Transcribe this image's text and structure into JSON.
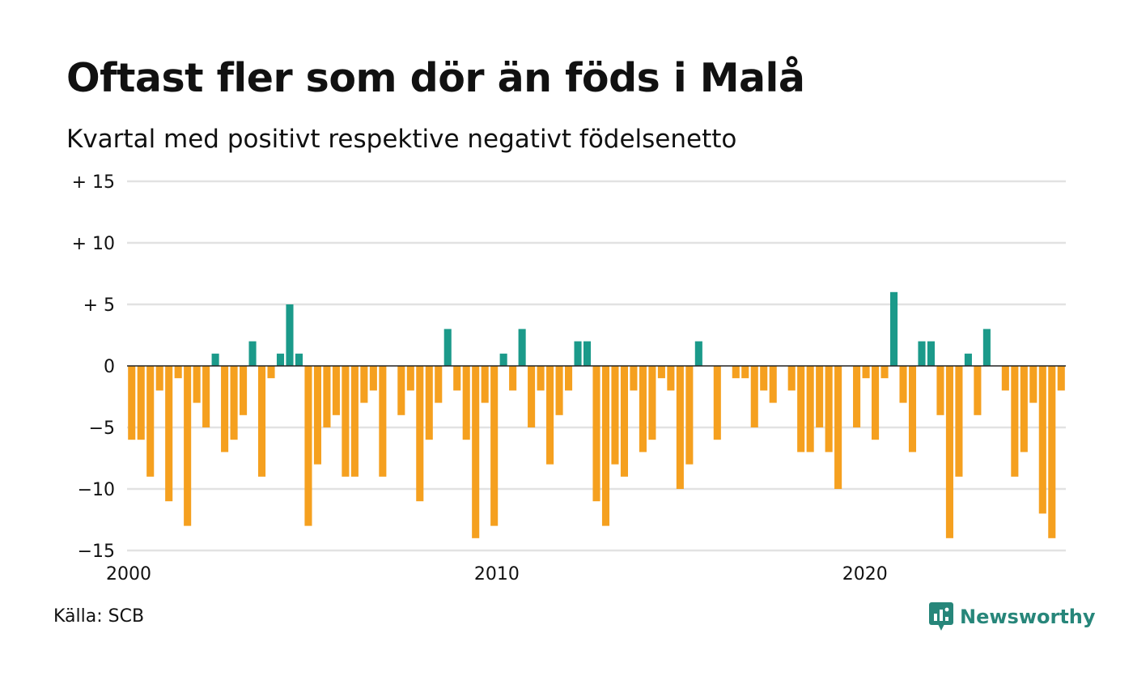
{
  "title": "Oftast fler som dör än föds i Malå",
  "subtitle": "Kvartal med positivt respektive negativt födelsenetto",
  "source": "Källa: SCB",
  "brand": {
    "name": "Newsworthy",
    "icon": "chart-speech-bubble-icon"
  },
  "colors": {
    "positive": "#1b9a8a",
    "negative": "#f5a01f",
    "grid": "#e2e2e2",
    "zero_line": "#222222",
    "brand": "#27867a"
  },
  "chart_data": {
    "type": "bar",
    "title": "Oftast fler som dör än föds i Malå",
    "subtitle": "Kvartal med positivt respektive negativt födelsenetto",
    "xlabel": "",
    "ylabel": "",
    "frequency": "quarterly",
    "start": "2000",
    "x_ticks": [
      {
        "value": 2000,
        "label": "2000"
      },
      {
        "value": 2010,
        "label": "2010"
      },
      {
        "value": 2020,
        "label": "2020"
      }
    ],
    "y_ticks": [
      {
        "value": 15,
        "label": "+ 15"
      },
      {
        "value": 10,
        "label": "+ 10"
      },
      {
        "value": 5,
        "label": "+  5"
      },
      {
        "value": 0,
        "label": "0"
      },
      {
        "value": -5,
        "label": "−5"
      },
      {
        "value": -10,
        "label": "−10"
      },
      {
        "value": -15,
        "label": "−15"
      }
    ],
    "ylim": [
      -15,
      15
    ],
    "xlim": [
      2000,
      2025.5
    ],
    "grid": true,
    "values": [
      -6,
      -6,
      -9,
      -2,
      -11,
      -1,
      -13,
      -3,
      -5,
      1,
      -7,
      -6,
      -4,
      2,
      -9,
      -1,
      1,
      5,
      1,
      -13,
      -8,
      -5,
      -4,
      -9,
      -9,
      -3,
      -2,
      -9,
      0,
      -4,
      -2,
      -11,
      -6,
      -3,
      3,
      -2,
      -6,
      -14,
      -3,
      -13,
      1,
      -2,
      3,
      -5,
      -2,
      -8,
      -4,
      -2,
      2,
      2,
      -11,
      -13,
      -8,
      -9,
      -2,
      -7,
      -6,
      -1,
      -2,
      -10,
      -8,
      2,
      0,
      -6,
      0,
      -1,
      -1,
      -5,
      -2,
      -3,
      0,
      -2,
      -7,
      -7,
      -5,
      -7,
      -10,
      0,
      -5,
      -1,
      -6,
      -1,
      6,
      -3,
      -7,
      2,
      2,
      -4,
      -14,
      -9,
      1,
      -4,
      3,
      0,
      -2,
      -9,
      -7,
      -3,
      -12,
      -14,
      -2
    ]
  }
}
